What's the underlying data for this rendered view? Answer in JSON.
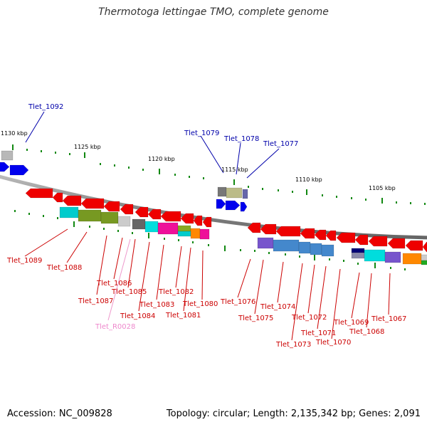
{
  "title": "Thermotoga lettingae TMO, complete genome",
  "footer": {
    "accession": "Accession: NC_009828",
    "summary": "Topology: circular; Length: 2,135,342 bp; Genes: 2,091"
  },
  "colors": {
    "backbone": "#888888",
    "tick": "#118811",
    "label_top": "#0000aa",
    "label_bottom": "#cc0000",
    "label_rna": "#ee88cc",
    "line_rna": "#ee99cc"
  },
  "scale_labels": [
    "1130 kbp",
    "1125 kbp",
    "1120 kbp",
    "1115 kbp",
    "1110 kbp",
    "1105 kbp"
  ],
  "gene_labels_top": [
    "Tlet_1092",
    "Tlet_1079",
    "Tlet_1078",
    "Tlet_1077"
  ],
  "gene_labels_bottom": [
    "Tlet_1089",
    "Tlet_1088",
    "Tlet_1087",
    "Tlet_1086",
    "Tlet_1085",
    "Tlet_1084",
    "Tlet_1083",
    "Tlet_1082",
    "Tlet_1081",
    "Tlet_1080",
    "Tlet_1076",
    "Tlet_1075",
    "Tlet_1074",
    "Tlet_1073",
    "Tlet_1072",
    "Tlet_1071",
    "Tlet_1070",
    "Tlet_1069",
    "Tlet_1068",
    "Tlet_1067"
  ],
  "rna_label": "Tlet_R0028"
}
